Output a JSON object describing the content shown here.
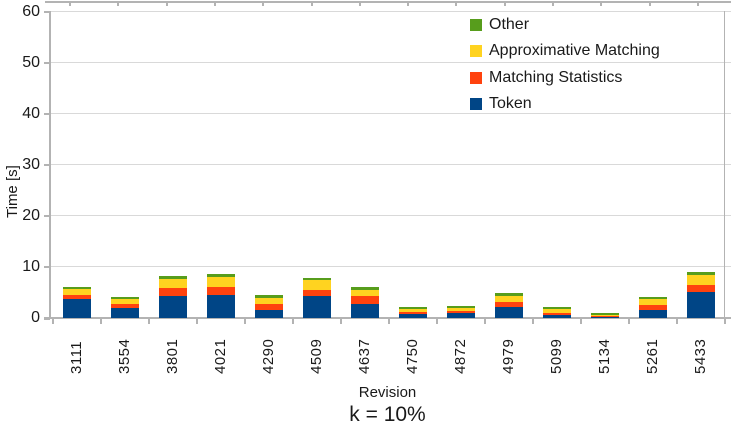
{
  "chart_data": {
    "type": "bar",
    "stacked": true,
    "title": "k = 10%",
    "xlabel": "Revision",
    "ylabel": "Time [s]",
    "ylim": [
      0,
      60
    ],
    "yticks": [
      0,
      10,
      20,
      30,
      40,
      50,
      60
    ],
    "grid": true,
    "legend_position": "top-right",
    "legend_order": [
      "Other",
      "Approximative Matching",
      "Matching Statistics",
      "Token"
    ],
    "categories": [
      "3111",
      "3554",
      "3801",
      "4021",
      "4290",
      "4509",
      "4637",
      "4750",
      "4872",
      "4979",
      "5099",
      "5134",
      "5261",
      "5433"
    ],
    "series": [
      {
        "name": "Token",
        "color": "#004586",
        "values": [
          3.8,
          1.9,
          4.3,
          4.5,
          1.6,
          4.4,
          2.7,
          0.7,
          0.9,
          2.1,
          0.65,
          0.2,
          1.6,
          5.0
        ]
      },
      {
        "name": "Matching Statistics",
        "color": "#FF420E",
        "values": [
          0.8,
          0.9,
          1.5,
          1.5,
          1.2,
          1.0,
          1.6,
          0.5,
          0.5,
          1.0,
          0.4,
          0.1,
          0.9,
          1.5
        ]
      },
      {
        "name": "Approximative Matching",
        "color": "#FFD320",
        "values": [
          1.0,
          1.0,
          1.9,
          2.0,
          1.2,
          2.0,
          1.2,
          0.6,
          0.5,
          1.2,
          0.75,
          0.25,
          1.2,
          2.0
        ]
      },
      {
        "name": "Other",
        "color": "#579D1C",
        "values": [
          0.4,
          0.4,
          0.6,
          0.6,
          0.5,
          0.5,
          0.5,
          0.45,
          0.5,
          0.55,
          0.45,
          0.4,
          0.5,
          0.45
        ]
      }
    ]
  },
  "colors": {
    "gridline": "#d9d9d9",
    "axis": "#b3b3b3",
    "text": "#1a1a1a"
  }
}
